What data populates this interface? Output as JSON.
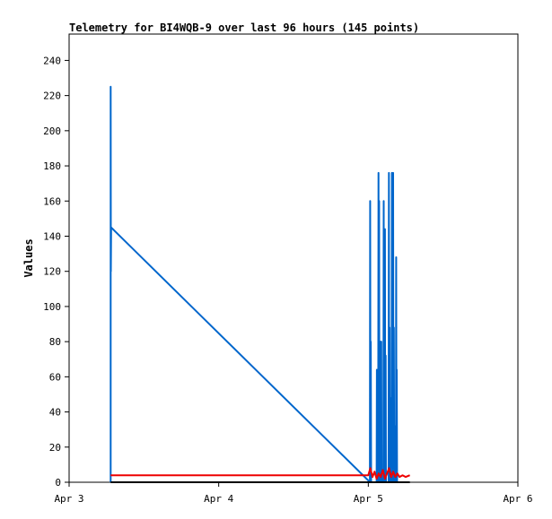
{
  "chart_data": {
    "type": "line",
    "title": "Telemetry for BI4WQB-9 over last 96 hours (145 points)",
    "xlabel": "",
    "ylabel": "Values",
    "xlim": [
      "2024-04-03T00:00",
      "2024-04-06T00:00"
    ],
    "ylim": [
      0,
      255
    ],
    "x_tick_labels": [
      {
        "t": "2024-04-03T00:00",
        "label": "Apr 3"
      },
      {
        "t": "2024-04-04T00:00",
        "label": "Apr 4"
      },
      {
        "t": "2024-04-05T00:00",
        "label": "Apr 5"
      },
      {
        "t": "2024-04-06T00:00",
        "label": "Apr 6"
      }
    ],
    "y_ticks": [
      0,
      20,
      40,
      60,
      80,
      100,
      120,
      140,
      160,
      180,
      200,
      220,
      240
    ],
    "grid": false,
    "legend": "none",
    "series": [
      {
        "color": "#0066cc",
        "points": [
          [
            "2024-04-03T06:40",
            0
          ],
          [
            "2024-04-03T06:40",
            225
          ],
          [
            "2024-04-03T06:42",
            120
          ],
          [
            "2024-04-03T06:44",
            145
          ],
          [
            "2024-04-05T00:00",
            1
          ],
          [
            "2024-04-05T00:15",
            0
          ],
          [
            "2024-04-05T00:18",
            160
          ],
          [
            "2024-04-05T00:21",
            0
          ],
          [
            "2024-04-05T00:24",
            80
          ],
          [
            "2024-04-05T00:27",
            0
          ],
          [
            "2024-04-05T01:20",
            0
          ],
          [
            "2024-04-05T01:23",
            64
          ],
          [
            "2024-04-05T01:26",
            0
          ],
          [
            "2024-04-05T01:35",
            0
          ],
          [
            "2024-04-05T01:38",
            176
          ],
          [
            "2024-04-05T01:41",
            0
          ],
          [
            "2024-04-05T01:44",
            160
          ],
          [
            "2024-04-05T01:47",
            0
          ],
          [
            "2024-04-05T01:55",
            80
          ],
          [
            "2024-04-05T01:58",
            0
          ],
          [
            "2024-04-05T02:05",
            80
          ],
          [
            "2024-04-05T02:08",
            0
          ],
          [
            "2024-04-05T02:25",
            0
          ],
          [
            "2024-04-05T02:28",
            160
          ],
          [
            "2024-04-05T02:31",
            0
          ],
          [
            "2024-04-05T02:34",
            72
          ],
          [
            "2024-04-05T02:37",
            0
          ],
          [
            "2024-04-05T02:40",
            144
          ],
          [
            "2024-04-05T02:43",
            0
          ],
          [
            "2024-04-05T02:47",
            72
          ],
          [
            "2024-04-05T02:50",
            0
          ],
          [
            "2024-04-05T03:15",
            0
          ],
          [
            "2024-04-05T03:18",
            176
          ],
          [
            "2024-04-05T03:21",
            0
          ],
          [
            "2024-04-05T03:25",
            88
          ],
          [
            "2024-04-05T03:28",
            0
          ],
          [
            "2024-04-05T03:38",
            0
          ],
          [
            "2024-04-05T03:41",
            48
          ],
          [
            "2024-04-05T03:44",
            0
          ],
          [
            "2024-04-05T03:47",
            176
          ],
          [
            "2024-04-05T03:50",
            0
          ],
          [
            "2024-04-05T03:53",
            88
          ],
          [
            "2024-04-05T03:56",
            0
          ],
          [
            "2024-04-05T03:59",
            176
          ],
          [
            "2024-04-05T04:02",
            0
          ],
          [
            "2024-04-05T04:06",
            88
          ],
          [
            "2024-04-05T04:09",
            0
          ],
          [
            "2024-04-05T04:20",
            0
          ],
          [
            "2024-04-05T04:23",
            32
          ],
          [
            "2024-04-05T04:26",
            0
          ],
          [
            "2024-04-05T04:28",
            128
          ],
          [
            "2024-04-05T04:31",
            0
          ],
          [
            "2024-04-05T04:34",
            64
          ],
          [
            "2024-04-05T04:37",
            0
          ]
        ]
      },
      {
        "color": "#ee0000",
        "points": [
          [
            "2024-04-03T06:40",
            4
          ],
          [
            "2024-04-05T00:00",
            4
          ],
          [
            "2024-04-05T00:20",
            8
          ],
          [
            "2024-04-05T00:40",
            3
          ],
          [
            "2024-04-05T01:00",
            6
          ],
          [
            "2024-04-05T01:20",
            2
          ],
          [
            "2024-04-05T01:40",
            5
          ],
          [
            "2024-04-05T02:00",
            3
          ],
          [
            "2024-04-05T02:20",
            7
          ],
          [
            "2024-04-05T02:40",
            2
          ],
          [
            "2024-04-05T03:00",
            5
          ],
          [
            "2024-04-05T03:20",
            8
          ],
          [
            "2024-04-05T03:40",
            3
          ],
          [
            "2024-04-05T04:00",
            6
          ],
          [
            "2024-04-05T04:20",
            3
          ],
          [
            "2024-04-05T04:40",
            5
          ],
          [
            "2024-04-05T05:00",
            3
          ],
          [
            "2024-04-05T05:30",
            4
          ],
          [
            "2024-04-05T06:00",
            3
          ],
          [
            "2024-04-05T06:40",
            4
          ]
        ]
      },
      {
        "color": "#000000",
        "points": [
          [
            "2024-04-03T06:40",
            0
          ],
          [
            "2024-04-05T06:40",
            0
          ]
        ]
      }
    ]
  }
}
